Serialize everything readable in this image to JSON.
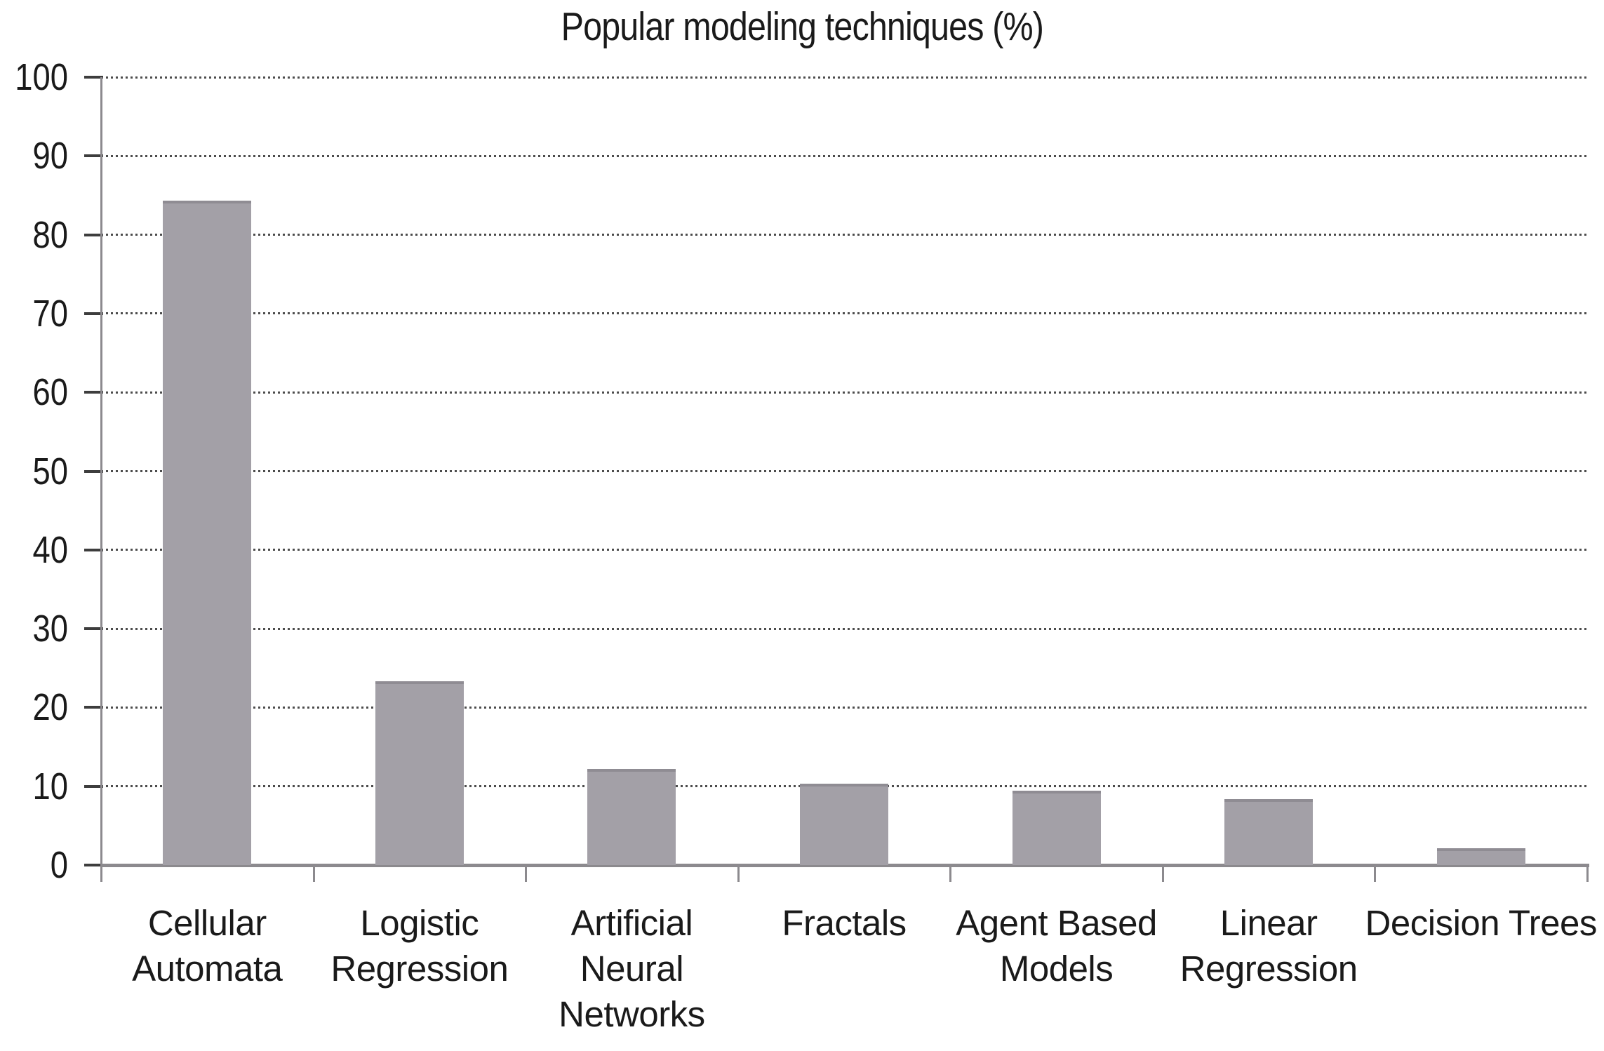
{
  "chart_data": {
    "type": "bar",
    "title": "Popular modeling techniques (%)",
    "categories": [
      "Cellular Automata",
      "Logistic Regression",
      "Artificial Neural Networks",
      "Fractals",
      "Agent Based Models",
      "Linear Regression",
      "Decision Trees"
    ],
    "category_lines": [
      [
        "Cellular",
        "Automata"
      ],
      [
        "Logistic",
        "Regression"
      ],
      [
        "Artificial",
        "Neural",
        "Networks"
      ],
      [
        "Fractals"
      ],
      [
        "Agent Based",
        "Models"
      ],
      [
        "Linear",
        "Regression"
      ],
      [
        "Decision Trees"
      ]
    ],
    "values": [
      84.3,
      23.3,
      12.2,
      10.3,
      9.4,
      8.4,
      2.1
    ],
    "xlabel": "",
    "ylabel": "",
    "ylim": [
      0,
      100
    ],
    "y_ticks": [
      0,
      10,
      20,
      30,
      40,
      50,
      60,
      70,
      80,
      90,
      100
    ],
    "grid": "horizontal-dotted",
    "legend_position": "none",
    "colors": {
      "bar_fill": "#a3a0a7",
      "bar_top_edge": "#8f8c93",
      "axis_line": "#8c8a8e",
      "tick_mark": "#3d3d3d",
      "grid_dot": "#4c4c4c",
      "text": "#1a1a1a",
      "background": "#ffffff"
    }
  }
}
